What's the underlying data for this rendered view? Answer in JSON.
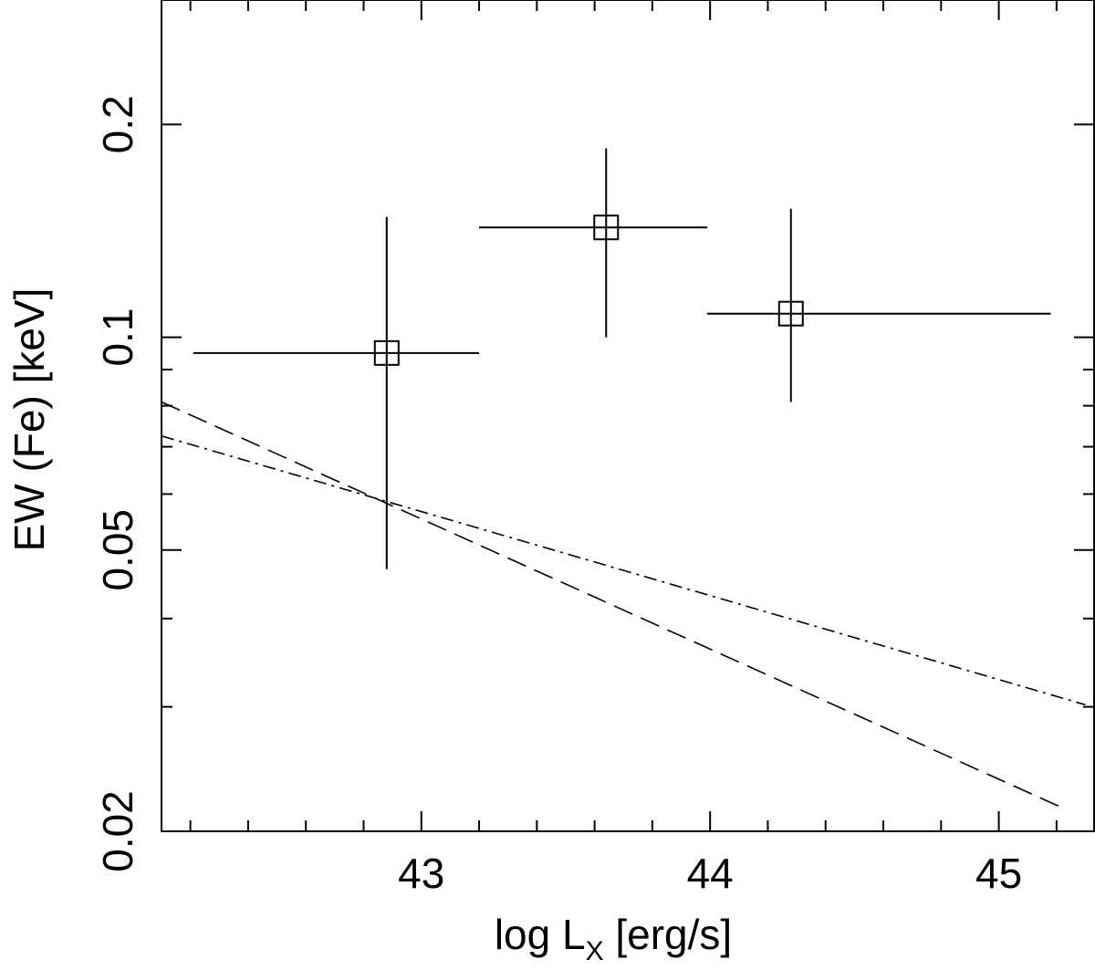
{
  "chart_data": {
    "type": "scatter",
    "xlabel": "log L",
    "xlabel_subscript": "X",
    "xlabel_unit": "[erg/s]",
    "ylabel": "EW (Fe) [keV]",
    "xlim": [
      42.1,
      45.33
    ],
    "ylim": [
      0.02,
      0.3
    ],
    "y_scale": "log",
    "x_major_ticks": [
      43,
      44,
      45
    ],
    "x_tick_labels": [
      "43",
      "44",
      "45"
    ],
    "x_minor_ticks": [
      42.2,
      42.4,
      42.6,
      42.8,
      43.2,
      43.4,
      43.6,
      43.8,
      44.2,
      44.4,
      44.6,
      44.8,
      45.2
    ],
    "y_major_ticks": [
      0.02,
      0.05,
      0.1,
      0.2
    ],
    "y_tick_labels": [
      "0.02",
      "0.05",
      "0.1",
      "0.2"
    ],
    "y_minor_ticks": [
      0.03,
      0.04,
      0.06,
      0.07,
      0.08,
      0.09
    ],
    "grid": false,
    "legend": "none",
    "points": [
      {
        "x": 42.88,
        "y": 0.095,
        "xerr": [
          42.21,
          43.2
        ],
        "yerr": [
          0.047,
          0.148
        ]
      },
      {
        "x": 43.64,
        "y": 0.143,
        "xerr": [
          43.2,
          43.99
        ],
        "yerr": [
          0.1,
          0.185
        ]
      },
      {
        "x": 44.28,
        "y": 0.108,
        "xerr": [
          43.99,
          45.18
        ],
        "yerr": [
          0.081,
          0.152
        ]
      }
    ],
    "lines": [
      {
        "style": "dashed",
        "x": [
          42.1,
          45.23
        ],
        "y": [
          0.081,
          0.0215
        ]
      },
      {
        "style": "dash-dot",
        "x": [
          42.1,
          45.3
        ],
        "y": [
          0.0725,
          0.0302
        ]
      }
    ]
  }
}
